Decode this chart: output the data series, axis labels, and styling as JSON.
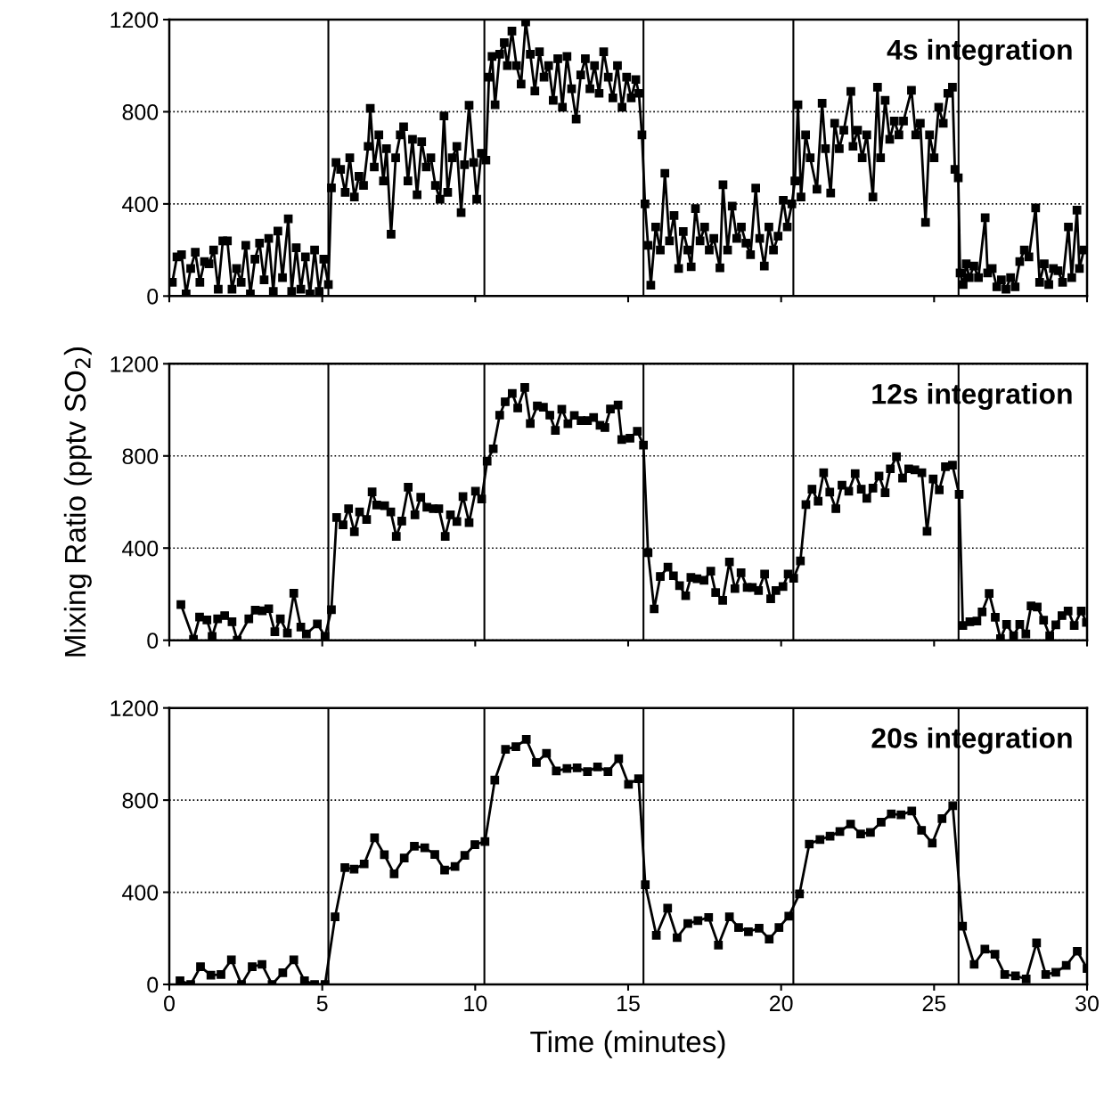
{
  "chart_data": [
    {
      "type": "line",
      "annotations": [
        "4s integration"
      ],
      "xlim": [
        0,
        30
      ],
      "xticks": [
        0,
        5,
        10,
        15,
        20,
        25,
        30
      ],
      "ylim": [
        0,
        1200
      ],
      "yticks": [
        0,
        400,
        800,
        1200
      ],
      "tick_labels": "y",
      "grid": "y",
      "marker": "square",
      "line_style": "solid",
      "ref_lines": [
        {
          "axis": "x",
          "value": 5.2,
          "color": "#000000"
        },
        {
          "axis": "x",
          "value": 10.3,
          "color": "#000000"
        },
        {
          "axis": "x",
          "value": 15.5,
          "color": "#000000"
        },
        {
          "axis": "x",
          "value": 20.4,
          "color": "#000000"
        },
        {
          "axis": "x",
          "value": 25.8,
          "color": "#000000"
        }
      ],
      "series": [
        {
          "color": "#000000",
          "x": [
            0.1,
            0.25,
            0.4,
            0.55,
            0.7,
            0.85,
            1.0,
            1.15,
            1.3,
            1.45,
            1.6,
            1.75,
            1.9,
            2.05,
            2.2,
            2.35,
            2.5,
            2.65,
            2.8,
            2.95,
            3.1,
            3.25,
            3.4,
            3.55,
            3.7,
            3.89,
            4.0,
            4.15,
            4.3,
            4.45,
            4.6,
            4.75,
            4.9,
            5.05,
            5.2,
            5.3,
            5.45,
            5.6,
            5.75,
            5.9,
            6.05,
            6.2,
            6.35,
            6.5,
            6.57,
            6.7,
            6.85,
            7.0,
            7.1,
            7.25,
            7.4,
            7.55,
            7.66,
            7.8,
            7.95,
            8.1,
            8.25,
            8.4,
            8.55,
            8.7,
            8.85,
            8.98,
            9.1,
            9.25,
            9.4,
            9.54,
            9.65,
            9.8,
            9.95,
            10.05,
            10.2,
            10.35,
            10.45,
            10.55,
            10.65,
            10.8,
            10.95,
            11.05,
            11.2,
            11.35,
            11.5,
            11.65,
            11.8,
            11.95,
            12.1,
            12.25,
            12.4,
            12.55,
            12.7,
            12.85,
            13.0,
            13.15,
            13.3,
            13.45,
            13.6,
            13.75,
            13.9,
            14.05,
            14.2,
            14.35,
            14.5,
            14.65,
            14.8,
            14.95,
            15.1,
            15.25,
            15.35,
            15.45,
            15.55,
            15.65,
            15.74,
            15.9,
            16.05,
            16.2,
            16.35,
            16.5,
            16.65,
            16.8,
            16.95,
            17.06,
            17.2,
            17.35,
            17.5,
            17.65,
            17.8,
            18.0,
            18.1,
            18.25,
            18.4,
            18.55,
            18.7,
            18.85,
            19.0,
            19.17,
            19.3,
            19.45,
            19.6,
            19.75,
            19.9,
            20.07,
            20.2,
            20.35,
            20.45,
            20.55,
            20.65,
            20.8,
            20.95,
            21.17,
            21.34,
            21.45,
            21.62,
            21.75,
            21.9,
            22.05,
            22.28,
            22.35,
            22.5,
            22.65,
            22.8,
            23.0,
            23.15,
            23.25,
            23.4,
            23.55,
            23.7,
            23.85,
            24.0,
            24.26,
            24.4,
            24.55,
            24.72,
            24.85,
            25.0,
            25.15,
            25.3,
            25.45,
            25.6,
            25.68,
            25.79,
            25.85,
            25.95,
            26.05,
            26.15,
            26.3,
            26.45,
            26.67,
            26.75,
            26.9,
            27.05,
            27.2,
            27.35,
            27.5,
            27.65,
            27.8,
            27.95,
            28.1,
            28.32,
            28.45,
            28.6,
            28.75,
            28.9,
            29.05,
            29.2,
            29.39,
            29.5,
            29.67,
            29.75,
            29.9
          ],
          "values": [
            60,
            170,
            180,
            10,
            120,
            190,
            60,
            150,
            140,
            200,
            30,
            240,
            240,
            30,
            120,
            60,
            220,
            10,
            160,
            230,
            70,
            250,
            20,
            282,
            80,
            335,
            20,
            210,
            30,
            170,
            10,
            200,
            20,
            160,
            50,
            470,
            580,
            550,
            450,
            600,
            430,
            520,
            480,
            650,
            815,
            560,
            700,
            500,
            640,
            269,
            600,
            700,
            735,
            500,
            680,
            440,
            670,
            560,
            600,
            480,
            420,
            782,
            450,
            600,
            650,
            362,
            570,
            828,
            580,
            420,
            620,
            590,
            950,
            1040,
            830,
            1050,
            1100,
            1000,
            1150,
            1000,
            920,
            1190,
            1050,
            890,
            1060,
            950,
            1000,
            850,
            1030,
            820,
            1040,
            900,
            768,
            960,
            1030,
            900,
            1000,
            880,
            1060,
            950,
            860,
            1000,
            820,
            950,
            860,
            940,
            880,
            700,
            400,
            220,
            47,
            300,
            200,
            533,
            240,
            350,
            120,
            280,
            200,
            127,
            380,
            240,
            300,
            200,
            250,
            123,
            483,
            200,
            390,
            250,
            300,
            230,
            180,
            469,
            250,
            130,
            300,
            200,
            260,
            416,
            300,
            400,
            500,
            830,
            430,
            700,
            600,
            464,
            837,
            640,
            447,
            750,
            640,
            720,
            888,
            650,
            720,
            600,
            700,
            430,
            907,
            600,
            850,
            680,
            760,
            700,
            760,
            893,
            700,
            750,
            320,
            700,
            600,
            820,
            750,
            880,
            907,
            550,
            513,
            100,
            50,
            140,
            80,
            130,
            80,
            340,
            100,
            120,
            40,
            70,
            30,
            80,
            40,
            150,
            200,
            170,
            383,
            60,
            140,
            50,
            120,
            110,
            60,
            300,
            80,
            373,
            120,
            200
          ]
        }
      ]
    },
    {
      "type": "line",
      "annotations": [
        "12s integration"
      ],
      "ylabel": "Mixing Ratio (pptv SO$_{2}$)",
      "xlim": [
        0,
        30
      ],
      "xticks": [
        0,
        5,
        10,
        15,
        20,
        25,
        30
      ],
      "ylim": [
        0,
        1200
      ],
      "yticks": [
        0,
        400,
        800,
        1200
      ],
      "tick_labels": "y",
      "grid": "y",
      "marker": "square",
      "line_style": "solid",
      "ref_lines": [
        {
          "axis": "x",
          "value": 5.2,
          "color": "#000000"
        },
        {
          "axis": "x",
          "value": 10.3,
          "color": "#000000"
        },
        {
          "axis": "x",
          "value": 15.5,
          "color": "#000000"
        },
        {
          "axis": "x",
          "value": 20.4,
          "color": "#000000"
        },
        {
          "axis": "x",
          "value": 25.8,
          "color": "#000000"
        }
      ],
      "series": [
        {
          "color": "#000000",
          "x": [
            0.38,
            0.79,
            0.99,
            1.23,
            1.4,
            1.58,
            1.81,
            2.05,
            2.22,
            2.6,
            2.81,
            3.04,
            3.25,
            3.45,
            3.63,
            3.86,
            4.07,
            4.3,
            4.48,
            4.84,
            5.09,
            5.3,
            5.47,
            5.68,
            5.86,
            6.05,
            6.22,
            6.45,
            6.63,
            6.78,
            7.04,
            7.24,
            7.42,
            7.6,
            7.81,
            8.03,
            8.22,
            8.42,
            8.63,
            8.81,
            9.02,
            9.19,
            9.4,
            9.6,
            9.8,
            10.01,
            10.21,
            10.39,
            10.59,
            10.8,
            10.98,
            11.21,
            11.39,
            11.62,
            11.8,
            12.03,
            12.23,
            12.44,
            12.62,
            12.83,
            13.03,
            13.24,
            13.46,
            13.67,
            13.87,
            14.08,
            14.24,
            14.42,
            14.67,
            14.79,
            15.06,
            15.3,
            15.5,
            15.65,
            15.85,
            16.05,
            16.3,
            16.48,
            16.68,
            16.88,
            17.05,
            17.25,
            17.48,
            17.7,
            17.86,
            18.09,
            18.31,
            18.49,
            18.69,
            18.89,
            19.06,
            19.26,
            19.46,
            19.66,
            19.83,
            20.06,
            20.23,
            20.41,
            20.63,
            20.81,
            21.01,
            21.21,
            21.39,
            21.59,
            21.79,
            21.99,
            22.21,
            22.42,
            22.62,
            22.8,
            23.0,
            23.2,
            23.4,
            23.57,
            23.77,
            23.97,
            24.17,
            24.37,
            24.6,
            24.77,
            24.97,
            25.17,
            25.37,
            25.6,
            25.82,
            25.94,
            26.17,
            26.4,
            26.57,
            26.8,
            27.0,
            27.17,
            27.37,
            27.6,
            27.8,
            28.0,
            28.17,
            28.37,
            28.58,
            28.78,
            28.98,
            29.18,
            29.38,
            29.58,
            29.81,
            29.98
          ],
          "values": [
            155,
            4,
            101,
            88,
            17,
            93,
            107,
            80,
            0,
            93,
            131,
            128,
            137,
            37,
            93,
            31,
            204,
            57,
            27,
            71,
            17,
            133,
            533,
            501,
            571,
            471,
            557,
            524,
            644,
            587,
            584,
            557,
            451,
            517,
            664,
            544,
            621,
            577,
            571,
            571,
            451,
            544,
            515,
            624,
            511,
            647,
            613,
            777,
            831,
            977,
            1035,
            1071,
            1008,
            1097,
            941,
            1017,
            1011,
            977,
            911,
            1003,
            940,
            976,
            953,
            953,
            967,
            933,
            923,
            1004,
            1021,
            871,
            877,
            907,
            847,
            380,
            136,
            277,
            317,
            280,
            237,
            193,
            273,
            267,
            260,
            300,
            207,
            173,
            340,
            224,
            293,
            229,
            229,
            216,
            287,
            180,
            216,
            233,
            287,
            269,
            344,
            589,
            656,
            603,
            727,
            643,
            571,
            673,
            647,
            723,
            656,
            616,
            660,
            713,
            640,
            744,
            797,
            704,
            744,
            740,
            727,
            473,
            700,
            653,
            753,
            760,
            633,
            64,
            80,
            83,
            123,
            203,
            100,
            7,
            69,
            20,
            69,
            27,
            149,
            144,
            87,
            20,
            67,
            107,
            127,
            64,
            127,
            77
          ]
        }
      ]
    },
    {
      "type": "line",
      "annotations": [
        "20s integration"
      ],
      "xlabel": "Time (minutes)",
      "xlim": [
        0,
        30
      ],
      "xticks": [
        0,
        5,
        10,
        15,
        20,
        25,
        30
      ],
      "ylim": [
        0,
        1200
      ],
      "yticks": [
        0,
        400,
        800,
        1200
      ],
      "grid": "y",
      "marker": "square",
      "line_style": "solid",
      "ref_lines": [
        {
          "axis": "x",
          "value": 5.2,
          "color": "#000000"
        },
        {
          "axis": "x",
          "value": 10.3,
          "color": "#000000"
        },
        {
          "axis": "x",
          "value": 15.5,
          "color": "#000000"
        },
        {
          "axis": "x",
          "value": 20.4,
          "color": "#000000"
        },
        {
          "axis": "x",
          "value": 25.8,
          "color": "#000000"
        }
      ],
      "series": [
        {
          "color": "#000000",
          "x": [
            0.35,
            0.7,
            1.02,
            1.36,
            1.69,
            2.03,
            2.36,
            2.71,
            3.03,
            3.36,
            3.71,
            4.07,
            4.42,
            4.75,
            5.09,
            5.42,
            5.74,
            6.04,
            6.37,
            6.71,
            7.03,
            7.35,
            7.68,
            8.01,
            8.35,
            8.68,
            9.0,
            9.34,
            9.66,
            9.99,
            10.32,
            10.64,
            10.99,
            11.33,
            11.67,
            12.0,
            12.33,
            12.65,
            13.0,
            13.33,
            13.67,
            14.0,
            14.34,
            14.69,
            15.01,
            15.34,
            15.56,
            15.92,
            16.29,
            16.6,
            16.95,
            17.28,
            17.63,
            17.95,
            18.31,
            18.61,
            18.93,
            19.28,
            19.61,
            19.93,
            20.25,
            20.6,
            20.92,
            21.27,
            21.6,
            21.92,
            22.27,
            22.6,
            22.92,
            23.27,
            23.6,
            23.92,
            24.27,
            24.59,
            24.94,
            25.26,
            25.61,
            25.93,
            26.31,
            26.66,
            26.99,
            27.31,
            27.66,
            28.01,
            28.35,
            28.65,
            28.98,
            29.32,
            29.68,
            30
          ],
          "values": [
            16,
            0,
            77,
            40,
            43,
            107,
            0,
            77,
            87,
            0,
            51,
            107,
            16,
            0,
            0,
            293,
            507,
            500,
            523,
            637,
            563,
            480,
            549,
            600,
            593,
            564,
            496,
            512,
            560,
            607,
            620,
            887,
            1020,
            1032,
            1064,
            963,
            1003,
            927,
            937,
            940,
            924,
            944,
            924,
            980,
            869,
            893,
            433,
            213,
            331,
            203,
            264,
            277,
            291,
            171,
            293,
            247,
            229,
            244,
            197,
            247,
            296,
            393,
            609,
            629,
            643,
            664,
            696,
            653,
            660,
            704,
            740,
            736,
            753,
            669,
            613,
            720,
            776,
            253,
            87,
            153,
            131,
            43,
            37,
            24,
            180,
            43,
            53,
            83,
            144,
            69
          ]
        }
      ]
    }
  ]
}
